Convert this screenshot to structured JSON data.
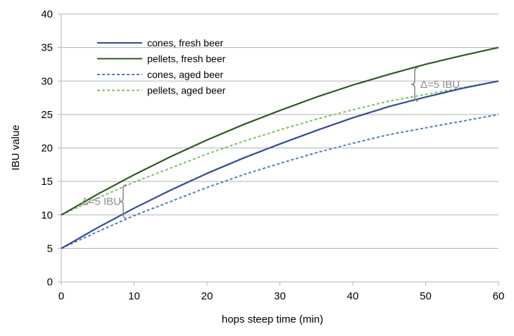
{
  "chart_data": {
    "type": "line",
    "xlabel": "hops steep time (min)",
    "ylabel": "IBU value",
    "xlim": [
      0,
      60
    ],
    "ylim": [
      0,
      40
    ],
    "xticks": [
      "0",
      "10",
      "20",
      "30",
      "40",
      "50",
      "60"
    ],
    "yticks": [
      "0",
      "5",
      "10",
      "15",
      "20",
      "25",
      "30",
      "35",
      "40"
    ],
    "grid": "horizontal",
    "legend_position": "top-left",
    "x": [
      0,
      5,
      10,
      15,
      20,
      25,
      30,
      35,
      40,
      45,
      50,
      55,
      60
    ],
    "series": [
      {
        "name": "cones, fresh beer",
        "color": "#2f4b9f",
        "style": "solid",
        "values": [
          5,
          8.1,
          11.0,
          13.7,
          16.2,
          18.5,
          20.6,
          22.6,
          24.5,
          26.2,
          27.6,
          28.9,
          30.0
        ]
      },
      {
        "name": "pellets, fresh beer",
        "color": "#2e5a1c",
        "style": "solid",
        "values": [
          10,
          13.1,
          16.0,
          18.7,
          21.2,
          23.5,
          25.6,
          27.6,
          29.4,
          31.0,
          32.5,
          33.8,
          35.0
        ]
      },
      {
        "name": "cones, aged beer",
        "color": "#4a7fbf",
        "style": "dashed",
        "values": [
          5,
          7.5,
          9.9,
          12.0,
          14.1,
          16.0,
          17.7,
          19.3,
          20.7,
          22.0,
          23.0,
          24.0,
          25.0
        ]
      },
      {
        "name": "pellets, aged beer",
        "color": "#80c060",
        "style": "dashed",
        "values": [
          10,
          12.5,
          14.9,
          17.0,
          19.1,
          21.0,
          22.7,
          24.3,
          25.7,
          27.0,
          28.0,
          29.0,
          30.0
        ]
      }
    ],
    "annotations": [
      {
        "text": "Δ=5 IBU",
        "x": 8.5,
        "y_low": 9.5,
        "y_high": 14.5,
        "label_side": "left"
      },
      {
        "text": "Δ=5 IBU",
        "x": 48.5,
        "y_low": 27.0,
        "y_high": 32.0,
        "label_side": "right"
      }
    ]
  }
}
